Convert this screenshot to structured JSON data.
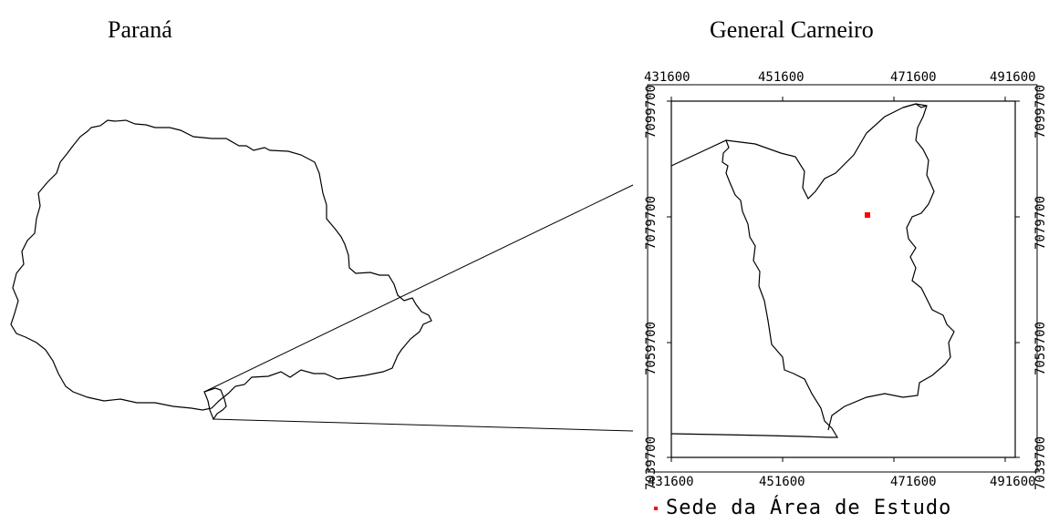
{
  "titles": {
    "left_map": "Paraná",
    "right_map": "General Carneiro"
  },
  "axes": {
    "x_ticks": [
      "431600",
      "451600",
      "471600",
      "491600"
    ],
    "y_ticks": [
      "7099700",
      "7079700",
      "7059700",
      "7039700"
    ]
  },
  "legend": {
    "label": "Sede da Área de Estudo",
    "marker_color": "#ff0000"
  },
  "colors": {
    "outline": "#000000",
    "marker": "#ff0000"
  }
}
